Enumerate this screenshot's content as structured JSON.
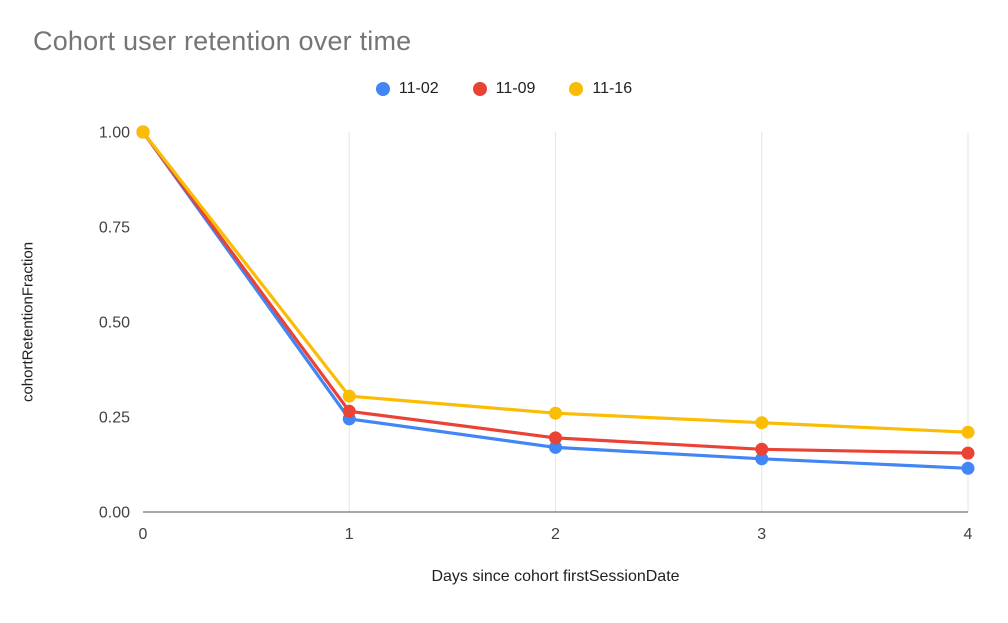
{
  "chart_data": {
    "type": "line",
    "title": "Cohort user retention over time",
    "xlabel": "Days since cohort firstSessionDate",
    "ylabel": "cohortRetentionFraction",
    "x": [
      0,
      1,
      2,
      3,
      4
    ],
    "xtick_labels": [
      "0",
      "1",
      "2",
      "3",
      "4"
    ],
    "ylim": [
      0,
      1
    ],
    "yticks": [
      0,
      0.25,
      0.5,
      0.75,
      1
    ],
    "ytick_labels": [
      "0.00",
      "0.25",
      "0.50",
      "0.75",
      "1.00"
    ],
    "grid": "vertical",
    "legend_position": "top-center",
    "series": [
      {
        "name": "11-02",
        "color": "#4285F4",
        "values": [
          1.0,
          0.245,
          0.17,
          0.14,
          0.115
        ]
      },
      {
        "name": "11-09",
        "color": "#EA4335",
        "values": [
          1.0,
          0.265,
          0.195,
          0.165,
          0.155
        ]
      },
      {
        "name": "11-16",
        "color": "#FBBC04",
        "values": [
          1.0,
          0.305,
          0.26,
          0.235,
          0.21
        ]
      }
    ]
  },
  "style": {
    "background_color": "#ffffff",
    "title_color": "#757575",
    "gridline_color": "#e6e6e6",
    "axis_line_color": "#757575",
    "tick_label_color": "#424242"
  }
}
